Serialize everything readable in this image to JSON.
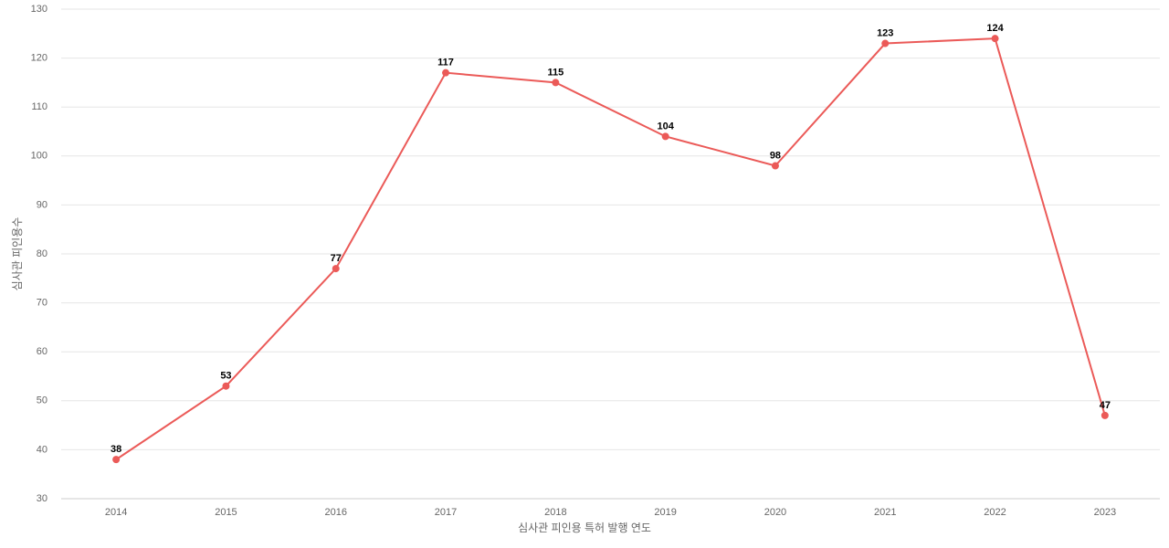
{
  "chart_data": {
    "type": "line",
    "xlabel": "심사관 피인용 특허 발행 연도",
    "ylabel": "심사관 피인용수",
    "categories": [
      "2014",
      "2015",
      "2016",
      "2017",
      "2018",
      "2019",
      "2020",
      "2021",
      "2022",
      "2023"
    ],
    "series": [
      {
        "name": "심사관 피인용수",
        "color": "#eb5a58",
        "values": [
          38,
          53,
          77,
          117,
          115,
          104,
          98,
          123,
          124,
          47
        ]
      }
    ],
    "ylim": [
      30,
      130
    ],
    "yticks": [
      30,
      40,
      50,
      60,
      70,
      80,
      90,
      100,
      110,
      120,
      130
    ],
    "grid": true
  }
}
